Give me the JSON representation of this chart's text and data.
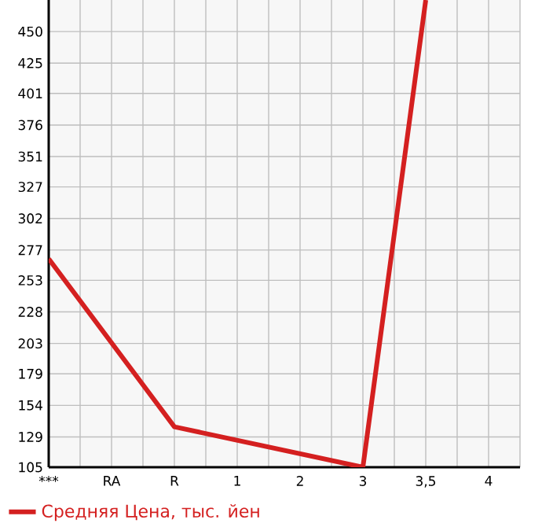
{
  "chart_data": {
    "type": "line",
    "categories": [
      "***",
      "RA",
      "R",
      "1",
      "2",
      "3",
      "3,5",
      "4"
    ],
    "series": [
      {
        "name": "Средняя Цена, тыс. йен",
        "color": "#d42020",
        "values": [
          270,
          null,
          137,
          null,
          null,
          105,
          475,
          null
        ]
      }
    ],
    "ylim": [
      105,
      475
    ],
    "yticks": [
      105,
      129,
      154,
      179,
      203,
      228,
      253,
      277,
      302,
      327,
      351,
      376,
      401,
      425,
      450
    ],
    "grid": true,
    "legend": "bottom",
    "marker": "none",
    "line_style": "solid"
  }
}
